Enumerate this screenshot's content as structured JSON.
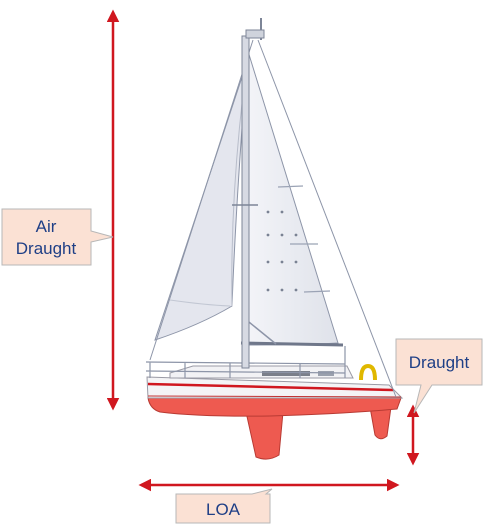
{
  "labels": {
    "air_draught_line1": "Air",
    "air_draught_line2": "Draught",
    "draught": "Draught",
    "loa": "LOA"
  },
  "colors": {
    "arrow": "#d0171f",
    "hull_bottom": "#ee5a50",
    "callout_fill": "#fbe1d4",
    "callout_border": "#b7b7b7",
    "callout_text": "#1f3f86",
    "sail": "#ebedf3",
    "rigging": "#8d95a8"
  },
  "icons": [
    "sailboat-illustration"
  ]
}
